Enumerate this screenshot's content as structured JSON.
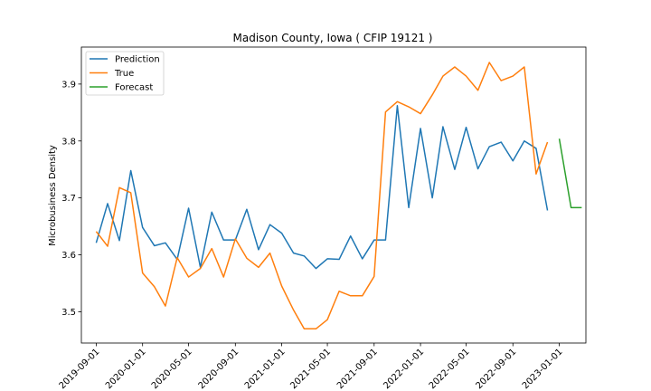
{
  "chart_data": {
    "type": "line",
    "title": "Madison County, Iowa ( CFIP 19121 )",
    "xlabel": "",
    "ylabel": "Microbusiness Density",
    "xlim": [
      "2019-07-24",
      "2023-03-12"
    ],
    "ylim": [
      3.445,
      3.965
    ],
    "x_ticks": [
      "2019-09-01",
      "2020-01-01",
      "2020-05-01",
      "2020-09-01",
      "2021-01-01",
      "2021-05-01",
      "2021-09-01",
      "2022-01-01",
      "2022-05-01",
      "2022-09-01",
      "2023-01-01"
    ],
    "y_ticks": [
      3.5,
      3.6,
      3.7,
      3.8,
      3.9
    ],
    "y_tick_labels": [
      "3.5",
      "3.6",
      "3.7",
      "3.8",
      "3.9"
    ],
    "legend_position": "upper-left",
    "grid": false,
    "series": [
      {
        "name": "Prediction",
        "color": "#1f77b4",
        "points": [
          [
            "2019-09-01",
            3.621
          ],
          [
            "2019-10-01",
            3.69
          ],
          [
            "2019-11-01",
            3.625
          ],
          [
            "2019-12-01",
            3.748
          ],
          [
            "2020-01-01",
            3.648
          ],
          [
            "2020-02-01",
            3.616
          ],
          [
            "2020-03-01",
            3.621
          ],
          [
            "2020-04-01",
            3.592
          ],
          [
            "2020-05-01",
            3.682
          ],
          [
            "2020-06-01",
            3.578
          ],
          [
            "2020-07-01",
            3.675
          ],
          [
            "2020-08-01",
            3.626
          ],
          [
            "2020-09-01",
            3.626
          ],
          [
            "2020-10-01",
            3.68
          ],
          [
            "2020-11-01",
            3.609
          ],
          [
            "2020-12-01",
            3.653
          ],
          [
            "2021-01-01",
            3.638
          ],
          [
            "2021-02-01",
            3.603
          ],
          [
            "2021-03-01",
            3.598
          ],
          [
            "2021-04-01",
            3.576
          ],
          [
            "2021-05-01",
            3.593
          ],
          [
            "2021-06-01",
            3.592
          ],
          [
            "2021-07-01",
            3.633
          ],
          [
            "2021-08-01",
            3.593
          ],
          [
            "2021-09-01",
            3.626
          ],
          [
            "2021-10-01",
            3.626
          ],
          [
            "2021-11-01",
            3.862
          ],
          [
            "2021-12-01",
            3.683
          ],
          [
            "2022-01-01",
            3.822
          ],
          [
            "2022-02-01",
            3.7
          ],
          [
            "2022-03-01",
            3.825
          ],
          [
            "2022-04-01",
            3.75
          ],
          [
            "2022-05-01",
            3.824
          ],
          [
            "2022-06-01",
            3.751
          ],
          [
            "2022-07-01",
            3.79
          ],
          [
            "2022-08-01",
            3.798
          ],
          [
            "2022-09-01",
            3.765
          ],
          [
            "2022-10-01",
            3.8
          ],
          [
            "2022-11-01",
            3.787
          ],
          [
            "2022-12-01",
            3.678
          ]
        ]
      },
      {
        "name": "True",
        "color": "#ff7f0e",
        "points": [
          [
            "2019-09-01",
            3.641
          ],
          [
            "2019-10-01",
            3.615
          ],
          [
            "2019-11-01",
            3.718
          ],
          [
            "2019-12-01",
            3.709
          ],
          [
            "2020-01-01",
            3.568
          ],
          [
            "2020-02-01",
            3.544
          ],
          [
            "2020-03-01",
            3.51
          ],
          [
            "2020-04-01",
            3.595
          ],
          [
            "2020-05-01",
            3.561
          ],
          [
            "2020-06-01",
            3.576
          ],
          [
            "2020-07-01",
            3.611
          ],
          [
            "2020-08-01",
            3.561
          ],
          [
            "2020-09-01",
            3.628
          ],
          [
            "2020-10-01",
            3.594
          ],
          [
            "2020-11-01",
            3.578
          ],
          [
            "2020-12-01",
            3.603
          ],
          [
            "2021-01-01",
            3.545
          ],
          [
            "2021-02-01",
            3.503
          ],
          [
            "2021-03-01",
            3.47
          ],
          [
            "2021-04-01",
            3.47
          ],
          [
            "2021-05-01",
            3.486
          ],
          [
            "2021-06-01",
            3.536
          ],
          [
            "2021-07-01",
            3.528
          ],
          [
            "2021-08-01",
            3.528
          ],
          [
            "2021-09-01",
            3.562
          ],
          [
            "2021-10-01",
            3.851
          ],
          [
            "2021-11-01",
            3.869
          ],
          [
            "2021-12-01",
            3.86
          ],
          [
            "2022-01-01",
            3.848
          ],
          [
            "2022-02-01",
            3.881
          ],
          [
            "2022-03-01",
            3.914
          ],
          [
            "2022-04-01",
            3.93
          ],
          [
            "2022-05-01",
            3.914
          ],
          [
            "2022-06-01",
            3.889
          ],
          [
            "2022-07-01",
            3.938
          ],
          [
            "2022-08-01",
            3.906
          ],
          [
            "2022-09-01",
            3.914
          ],
          [
            "2022-10-01",
            3.93
          ],
          [
            "2022-11-01",
            3.742
          ],
          [
            "2022-12-01",
            3.798
          ]
        ]
      },
      {
        "name": "Forecast",
        "color": "#2ca02c",
        "points": [
          [
            "2023-01-01",
            3.804
          ],
          [
            "2023-02-01",
            3.683
          ],
          [
            "2023-03-01",
            3.683
          ]
        ]
      }
    ]
  }
}
